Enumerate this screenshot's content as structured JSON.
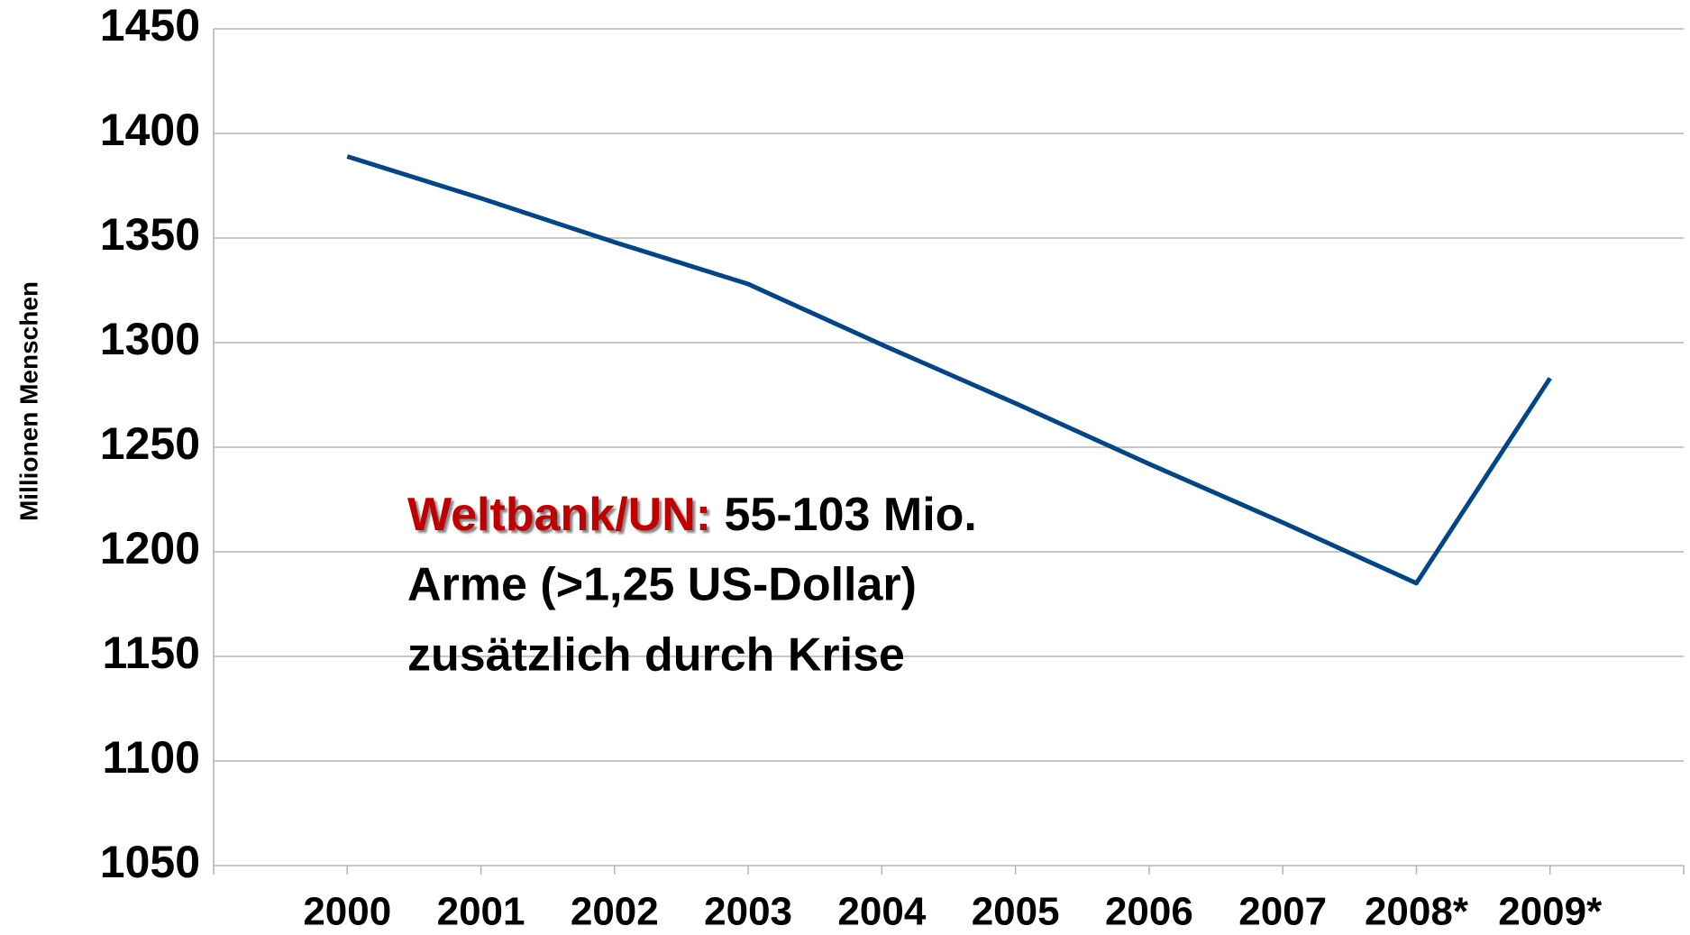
{
  "chart_data": {
    "type": "line",
    "y_axis_label": "Millionen Menschen",
    "categories": [
      "2000",
      "2001",
      "2002",
      "2003",
      "2004",
      "2005",
      "2006",
      "2007",
      "2008*",
      "2009*"
    ],
    "values": [
      1389,
      1369,
      1348,
      1328,
      1299,
      1271,
      1242,
      1214,
      1185,
      1283
    ],
    "color": "#004586",
    "ylim": [
      1050,
      1450
    ],
    "yticks": [
      1050,
      1100,
      1150,
      1200,
      1250,
      1300,
      1350,
      1400,
      1450
    ],
    "grid": true,
    "annotation": {
      "highlight": "Weltbank/UN:",
      "lines": [
        "55-103 Mio.",
        "Arme (>1,25 US-Dollar)",
        "zusätzlich durch Krise"
      ]
    }
  }
}
